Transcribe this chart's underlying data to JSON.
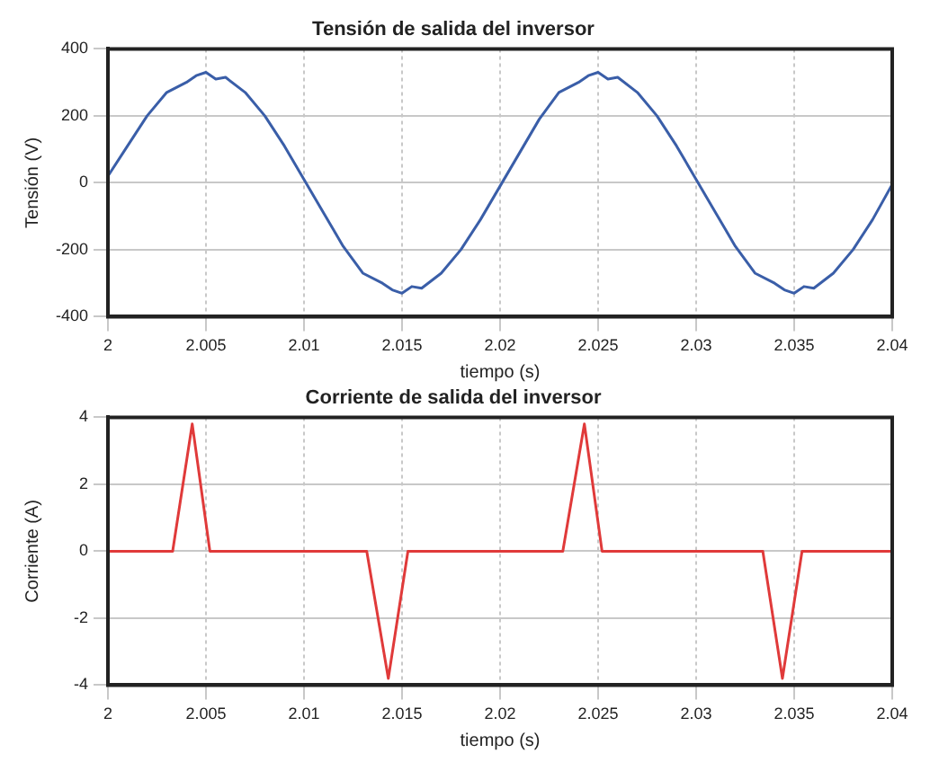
{
  "chart_data": [
    {
      "type": "line",
      "title": "Tensión de salida del inversor",
      "xlabel": "tiempo (s)",
      "ylabel": "Tensión (V)",
      "xlim": [
        2,
        2.04
      ],
      "xticks": [
        2,
        2.005,
        2.01,
        2.015,
        2.02,
        2.025,
        2.03,
        2.035,
        2.04
      ],
      "ylim": [
        -400,
        400
      ],
      "yticks": [
        -400,
        -200,
        0,
        200,
        400
      ],
      "grid": true,
      "line_style": "solid",
      "series": [
        {
          "color": "#3a5ea8",
          "x": [
            2,
            2.001,
            2.002,
            2.003,
            2.004,
            2.0045,
            2.005,
            2.0055,
            2.006,
            2.007,
            2.008,
            2.009,
            2.01,
            2.011,
            2.012,
            2.013,
            2.014,
            2.0145,
            2.015,
            2.0155,
            2.016,
            2.017,
            2.018,
            2.019,
            2.02,
            2.021,
            2.022,
            2.023,
            2.024,
            2.0245,
            2.025,
            2.0255,
            2.026,
            2.027,
            2.028,
            2.029,
            2.03,
            2.031,
            2.032,
            2.033,
            2.034,
            2.0345,
            2.035,
            2.0355,
            2.036,
            2.037,
            2.038,
            2.039,
            2.04
          ],
          "values": [
            20,
            110,
            200,
            270,
            300,
            320,
            330,
            310,
            315,
            270,
            200,
            110,
            10,
            -90,
            -190,
            -270,
            -300,
            -320,
            -330,
            -310,
            -315,
            -270,
            -200,
            -110,
            -10,
            90,
            190,
            270,
            300,
            320,
            330,
            310,
            315,
            270,
            200,
            110,
            10,
            -90,
            -190,
            -270,
            -300,
            -320,
            -330,
            -310,
            -315,
            -270,
            -200,
            -110,
            -5
          ]
        }
      ]
    },
    {
      "type": "line",
      "title": "Corriente de salida del inversor",
      "xlabel": "tiempo (s)",
      "ylabel": "Corriente (A)",
      "xlim": [
        2,
        2.04
      ],
      "xticks": [
        2,
        2.005,
        2.01,
        2.015,
        2.02,
        2.025,
        2.03,
        2.035,
        2.04
      ],
      "ylim": [
        -4,
        4
      ],
      "yticks": [
        -4,
        -2,
        0,
        2,
        4
      ],
      "grid": true,
      "line_style": "solid",
      "series": [
        {
          "color": "#e03a3a",
          "x": [
            2,
            2.0033,
            2.0043,
            2.0052,
            2.0132,
            2.0143,
            2.0153,
            2.0232,
            2.0243,
            2.0252,
            2.0334,
            2.0344,
            2.0354,
            2.04
          ],
          "values": [
            0,
            0,
            3.8,
            0,
            0,
            -3.8,
            0,
            0,
            3.8,
            0,
            0,
            -3.8,
            0,
            0
          ]
        }
      ]
    }
  ]
}
